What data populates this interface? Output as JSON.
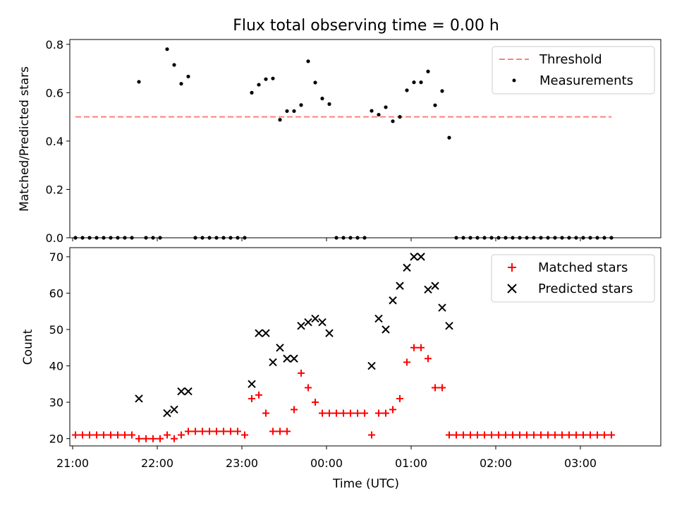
{
  "chart_data": [
    {
      "type": "scatter",
      "title": "Flux total observing time = 0.00 h",
      "ylabel": "Matched/Predicted stars",
      "xlabel": "",
      "xlim": [
        "20:58",
        "03:57"
      ],
      "ylim": [
        0,
        0.82
      ],
      "yticks": [
        0.0,
        0.2,
        0.4,
        0.6,
        0.8
      ],
      "ytick_labels": [
        "0.0",
        "0.2",
        "0.4",
        "0.6",
        "0.8"
      ],
      "legend": "top-right",
      "threshold": {
        "name": "Threshold",
        "value": 0.5,
        "x_range": [
          "21:02",
          "03:22"
        ],
        "color": "#ff7f7f"
      },
      "series": [
        {
          "name": "Measurements",
          "color": "#000000",
          "points": [
            [
              "21:02",
              0
            ],
            [
              "21:07",
              0
            ],
            [
              "21:12",
              0
            ],
            [
              "21:17",
              0
            ],
            [
              "21:22",
              0
            ],
            [
              "21:27",
              0
            ],
            [
              "21:32",
              0
            ],
            [
              "21:37",
              0
            ],
            [
              "21:42",
              0
            ],
            [
              "21:47",
              0.645
            ],
            [
              "21:52",
              0
            ],
            [
              "21:57",
              0
            ],
            [
              "22:02",
              0
            ],
            [
              "22:07",
              0.78
            ],
            [
              "22:12",
              0.715
            ],
            [
              "22:17",
              0.637
            ],
            [
              "22:22",
              0.667
            ],
            [
              "22:27",
              0
            ],
            [
              "22:32",
              0
            ],
            [
              "22:37",
              0
            ],
            [
              "22:42",
              0
            ],
            [
              "22:47",
              0
            ],
            [
              "22:52",
              0
            ],
            [
              "22:57",
              0
            ],
            [
              "23:02",
              0
            ],
            [
              "23:07",
              0.6
            ],
            [
              "23:12",
              0.633
            ],
            [
              "23:17",
              0.656
            ],
            [
              "23:22",
              0.659
            ],
            [
              "23:27",
              0.488
            ],
            [
              "23:32",
              0.524
            ],
            [
              "23:37",
              0.524
            ],
            [
              "23:42",
              0.549
            ],
            [
              "23:47",
              0.73
            ],
            [
              "23:52",
              0.642
            ],
            [
              "23:57",
              0.576
            ],
            [
              "00:02",
              0.553
            ],
            [
              "00:07",
              0
            ],
            [
              "00:12",
              0
            ],
            [
              "00:17",
              0
            ],
            [
              "00:22",
              0
            ],
            [
              "00:27",
              0
            ],
            [
              "00:32",
              0.525
            ],
            [
              "00:37",
              0.509
            ],
            [
              "00:42",
              0.54
            ],
            [
              "00:47",
              0.482
            ],
            [
              "00:52",
              0.5
            ],
            [
              "00:57",
              0.61
            ],
            [
              "01:02",
              0.643
            ],
            [
              "01:07",
              0.643
            ],
            [
              "01:12",
              0.688
            ],
            [
              "01:17",
              0.548
            ],
            [
              "01:22",
              0.607
            ],
            [
              "01:27",
              0.414
            ],
            [
              "01:32",
              0
            ],
            [
              "01:37",
              0
            ],
            [
              "01:42",
              0
            ],
            [
              "01:47",
              0
            ],
            [
              "01:52",
              0
            ],
            [
              "01:57",
              0
            ],
            [
              "02:02",
              0
            ],
            [
              "02:07",
              0
            ],
            [
              "02:12",
              0
            ],
            [
              "02:17",
              0
            ],
            [
              "02:22",
              0
            ],
            [
              "02:27",
              0
            ],
            [
              "02:32",
              0
            ],
            [
              "02:37",
              0
            ],
            [
              "02:42",
              0
            ],
            [
              "02:47",
              0
            ],
            [
              "02:52",
              0
            ],
            [
              "02:57",
              0
            ],
            [
              "03:02",
              0
            ],
            [
              "03:07",
              0
            ],
            [
              "03:12",
              0
            ],
            [
              "03:17",
              0
            ],
            [
              "03:22",
              0
            ]
          ]
        }
      ]
    },
    {
      "type": "scatter",
      "title": "",
      "ylabel": "Count",
      "xlabel": "Time (UTC)",
      "xlim": [
        "20:58",
        "03:57"
      ],
      "ylim": [
        18,
        72.5
      ],
      "yticks": [
        20,
        30,
        40,
        50,
        60,
        70
      ],
      "ytick_labels": [
        "20",
        "30",
        "40",
        "50",
        "60",
        "70"
      ],
      "xticks": [
        "21:00",
        "22:00",
        "23:00",
        "00:00",
        "01:00",
        "02:00",
        "03:00"
      ],
      "legend": "top-right",
      "series": [
        {
          "name": "Matched stars",
          "color": "#ff0000",
          "marker": "+",
          "points": [
            [
              "21:02",
              21
            ],
            [
              "21:07",
              21
            ],
            [
              "21:12",
              21
            ],
            [
              "21:17",
              21
            ],
            [
              "21:22",
              21
            ],
            [
              "21:27",
              21
            ],
            [
              "21:32",
              21
            ],
            [
              "21:37",
              21
            ],
            [
              "21:42",
              21
            ],
            [
              "21:47",
              20
            ],
            [
              "21:52",
              20
            ],
            [
              "21:57",
              20
            ],
            [
              "22:02",
              20
            ],
            [
              "22:07",
              21
            ],
            [
              "22:12",
              20
            ],
            [
              "22:17",
              21
            ],
            [
              "22:22",
              22
            ],
            [
              "22:27",
              22
            ],
            [
              "22:32",
              22
            ],
            [
              "22:37",
              22
            ],
            [
              "22:42",
              22
            ],
            [
              "22:47",
              22
            ],
            [
              "22:52",
              22
            ],
            [
              "22:57",
              22
            ],
            [
              "23:02",
              21
            ],
            [
              "23:07",
              31
            ],
            [
              "23:12",
              32
            ],
            [
              "23:17",
              27
            ],
            [
              "23:22",
              22
            ],
            [
              "23:27",
              22
            ],
            [
              "23:32",
              22
            ],
            [
              "23:37",
              28
            ],
            [
              "23:42",
              38
            ],
            [
              "23:47",
              34
            ],
            [
              "23:52",
              30
            ],
            [
              "23:57",
              27
            ],
            [
              "00:02",
              27
            ],
            [
              "00:07",
              27
            ],
            [
              "00:12",
              27
            ],
            [
              "00:17",
              27
            ],
            [
              "00:22",
              27
            ],
            [
              "00:27",
              27
            ],
            [
              "00:32",
              21
            ],
            [
              "00:37",
              27
            ],
            [
              "00:42",
              27
            ],
            [
              "00:47",
              28
            ],
            [
              "00:52",
              31
            ],
            [
              "00:57",
              41
            ],
            [
              "01:02",
              45
            ],
            [
              "01:07",
              45
            ],
            [
              "01:12",
              42
            ],
            [
              "01:17",
              34
            ],
            [
              "01:22",
              34
            ],
            [
              "01:27",
              21
            ],
            [
              "01:32",
              21
            ],
            [
              "01:37",
              21
            ],
            [
              "01:42",
              21
            ],
            [
              "01:47",
              21
            ],
            [
              "01:52",
              21
            ],
            [
              "01:57",
              21
            ],
            [
              "02:02",
              21
            ],
            [
              "02:07",
              21
            ],
            [
              "02:12",
              21
            ],
            [
              "02:17",
              21
            ],
            [
              "02:22",
              21
            ],
            [
              "02:27",
              21
            ],
            [
              "02:32",
              21
            ],
            [
              "02:37",
              21
            ],
            [
              "02:42",
              21
            ],
            [
              "02:47",
              21
            ],
            [
              "02:52",
              21
            ],
            [
              "02:57",
              21
            ],
            [
              "03:02",
              21
            ],
            [
              "03:07",
              21
            ],
            [
              "03:12",
              21
            ],
            [
              "03:17",
              21
            ],
            [
              "03:22",
              21
            ]
          ]
        },
        {
          "name": "Predicted stars",
          "color": "#000000",
          "marker": "x",
          "points": [
            [
              "21:47",
              31
            ],
            [
              "22:07",
              27
            ],
            [
              "22:12",
              28
            ],
            [
              "22:17",
              33
            ],
            [
              "22:22",
              33
            ],
            [
              "23:07",
              35
            ],
            [
              "23:12",
              49
            ],
            [
              "23:17",
              49
            ],
            [
              "23:22",
              41
            ],
            [
              "23:27",
              45
            ],
            [
              "23:32",
              42
            ],
            [
              "23:37",
              42
            ],
            [
              "23:42",
              51
            ],
            [
              "23:47",
              52
            ],
            [
              "23:52",
              53
            ],
            [
              "23:57",
              52
            ],
            [
              "00:02",
              49
            ],
            [
              "00:32",
              40
            ],
            [
              "00:37",
              53
            ],
            [
              "00:42",
              50
            ],
            [
              "00:47",
              58
            ],
            [
              "00:52",
              62
            ],
            [
              "00:57",
              67
            ],
            [
              "01:02",
              70
            ],
            [
              "01:07",
              70
            ],
            [
              "01:12",
              61
            ],
            [
              "01:17",
              62
            ],
            [
              "01:22",
              56
            ],
            [
              "01:27",
              51
            ]
          ]
        }
      ]
    }
  ]
}
